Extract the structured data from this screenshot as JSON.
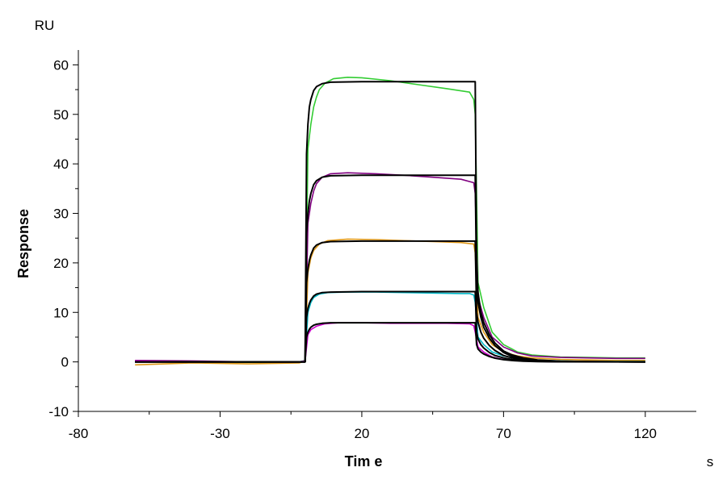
{
  "chart_data": {
    "type": "line",
    "title": "",
    "xlabel": "Tim e",
    "ylabel": "Response",
    "x_unit": "s",
    "y_unit": "RU",
    "xlim": [
      -80,
      138
    ],
    "ylim": [
      -10,
      63
    ],
    "x_ticks": [
      -80,
      -30,
      20,
      70,
      120
    ],
    "x_tick_labels": [
      "-80",
      "-30",
      "20",
      "70",
      "120"
    ],
    "y_ticks": [
      -10,
      0,
      10,
      20,
      30,
      40,
      50,
      60
    ],
    "y_tick_labels": [
      "-10",
      "0",
      "10",
      "20",
      "30",
      "40",
      "50",
      "60"
    ],
    "grid": false,
    "legend": "none",
    "association_start": 0,
    "dissociation_start": 60,
    "series": [
      {
        "color": "#33cc33",
        "points": [
          [
            -60,
            0
          ],
          [
            -40,
            0.1
          ],
          [
            -20,
            -0.1
          ],
          [
            -2,
            0
          ],
          [
            0,
            0.3
          ],
          [
            1,
            43
          ],
          [
            2,
            48
          ],
          [
            3,
            51.5
          ],
          [
            4,
            53.5
          ],
          [
            5,
            55
          ],
          [
            7,
            56.3
          ],
          [
            10,
            57.2
          ],
          [
            15,
            57.5
          ],
          [
            20,
            57.4
          ],
          [
            30,
            56.8
          ],
          [
            40,
            56
          ],
          [
            50,
            55.2
          ],
          [
            58,
            54.5
          ],
          [
            59.5,
            53
          ],
          [
            60,
            50
          ],
          [
            61,
            16
          ],
          [
            63,
            11
          ],
          [
            66,
            6
          ],
          [
            70,
            3.5
          ],
          [
            75,
            2
          ],
          [
            80,
            1.4
          ],
          [
            90,
            1
          ],
          [
            100,
            0.9
          ],
          [
            110,
            0.8
          ],
          [
            120,
            0.8
          ]
        ]
      },
      {
        "color": "#800080",
        "points": [
          [
            -60,
            0.3
          ],
          [
            -40,
            0.2
          ],
          [
            -20,
            0
          ],
          [
            -2,
            0
          ],
          [
            0,
            0.2
          ],
          [
            1,
            28
          ],
          [
            2,
            32
          ],
          [
            3,
            34.5
          ],
          [
            4,
            36
          ],
          [
            6,
            37.3
          ],
          [
            9,
            38
          ],
          [
            15,
            38.2
          ],
          [
            25,
            38
          ],
          [
            35,
            37.7
          ],
          [
            45,
            37.3
          ],
          [
            55,
            36.9
          ],
          [
            59.5,
            36.2
          ],
          [
            60,
            34
          ],
          [
            61,
            13
          ],
          [
            63,
            9
          ],
          [
            66,
            5
          ],
          [
            70,
            3
          ],
          [
            75,
            1.8
          ],
          [
            80,
            1.2
          ],
          [
            90,
            0.9
          ],
          [
            100,
            0.8
          ],
          [
            110,
            0.7
          ],
          [
            120,
            0.7
          ]
        ]
      },
      {
        "color": "#e09818",
        "points": [
          [
            -60,
            -0.6
          ],
          [
            -40,
            -0.2
          ],
          [
            -20,
            -0.4
          ],
          [
            -2,
            -0.2
          ],
          [
            0,
            0.2
          ],
          [
            1,
            18
          ],
          [
            2,
            21
          ],
          [
            3,
            22.5
          ],
          [
            5,
            23.8
          ],
          [
            8,
            24.5
          ],
          [
            15,
            24.8
          ],
          [
            25,
            24.7
          ],
          [
            35,
            24.5
          ],
          [
            45,
            24.3
          ],
          [
            55,
            24.1
          ],
          [
            59.5,
            23.8
          ],
          [
            60,
            22
          ],
          [
            61,
            9
          ],
          [
            63,
            6
          ],
          [
            66,
            3.5
          ],
          [
            70,
            2
          ],
          [
            75,
            1.2
          ],
          [
            80,
            0.8
          ],
          [
            90,
            0.5
          ],
          [
            100,
            0.4
          ],
          [
            110,
            0.3
          ],
          [
            120,
            0.3
          ]
        ]
      },
      {
        "color": "#00b8c8",
        "points": [
          [
            -60,
            0
          ],
          [
            -40,
            0
          ],
          [
            -20,
            0
          ],
          [
            -2,
            0
          ],
          [
            0,
            0.2
          ],
          [
            1,
            10
          ],
          [
            2,
            12
          ],
          [
            3,
            13
          ],
          [
            5,
            13.7
          ],
          [
            8,
            14
          ],
          [
            15,
            14.1
          ],
          [
            25,
            14.1
          ],
          [
            35,
            14
          ],
          [
            45,
            13.9
          ],
          [
            55,
            13.8
          ],
          [
            58,
            13.8
          ],
          [
            59.5,
            13.5
          ],
          [
            60,
            12
          ],
          [
            61,
            5
          ],
          [
            63,
            3.5
          ],
          [
            66,
            2
          ],
          [
            70,
            1.2
          ],
          [
            75,
            0.7
          ],
          [
            80,
            0.4
          ],
          [
            90,
            0.2
          ],
          [
            100,
            0.1
          ],
          [
            110,
            0.1
          ],
          [
            120,
            0.1
          ]
        ]
      },
      {
        "color": "#cc00cc",
        "points": [
          [
            -60,
            0.2
          ],
          [
            -40,
            0
          ],
          [
            -20,
            0
          ],
          [
            -2,
            0
          ],
          [
            0,
            0.2
          ],
          [
            1,
            5.5
          ],
          [
            2,
            6.5
          ],
          [
            4,
            7.2
          ],
          [
            7,
            7.7
          ],
          [
            12,
            7.9
          ],
          [
            20,
            7.9
          ],
          [
            30,
            7.8
          ],
          [
            40,
            7.8
          ],
          [
            50,
            7.8
          ],
          [
            58,
            7.7
          ],
          [
            59.5,
            7.3
          ],
          [
            60,
            6
          ],
          [
            61,
            3
          ],
          [
            63,
            2
          ],
          [
            66,
            1
          ],
          [
            70,
            0.5
          ],
          [
            75,
            0.3
          ],
          [
            80,
            0.1
          ],
          [
            90,
            0
          ],
          [
            100,
            0
          ],
          [
            110,
            0
          ],
          [
            120,
            0
          ]
        ]
      },
      {
        "color": "#000000",
        "points": [
          [
            -60,
            0
          ],
          [
            0,
            0
          ],
          [
            0.5,
            42
          ],
          [
            1,
            48
          ],
          [
            1.5,
            51.5
          ],
          [
            2,
            53
          ],
          [
            3,
            54.8
          ],
          [
            4,
            55.6
          ],
          [
            6,
            56.2
          ],
          [
            9,
            56.5
          ],
          [
            20,
            56.6
          ],
          [
            40,
            56.6
          ],
          [
            60,
            56.6
          ],
          [
            60.5,
            20
          ],
          [
            61,
            14
          ],
          [
            62,
            10
          ],
          [
            63,
            8
          ],
          [
            65,
            5.5
          ],
          [
            67,
            3.8
          ],
          [
            70,
            2.2
          ],
          [
            73,
            1.4
          ],
          [
            77,
            0.8
          ],
          [
            82,
            0.4
          ],
          [
            90,
            0.15
          ],
          [
            100,
            0.05
          ],
          [
            120,
            0
          ]
        ]
      },
      {
        "color": "#000000",
        "points": [
          [
            -60,
            0
          ],
          [
            0,
            0
          ],
          [
            0.5,
            26
          ],
          [
            1,
            30
          ],
          [
            1.5,
            32.5
          ],
          [
            2,
            34
          ],
          [
            3,
            35.8
          ],
          [
            4,
            36.6
          ],
          [
            6,
            37.3
          ],
          [
            9,
            37.6
          ],
          [
            20,
            37.7
          ],
          [
            40,
            37.7
          ],
          [
            60,
            37.7
          ],
          [
            60.5,
            15
          ],
          [
            61,
            12
          ],
          [
            62,
            9
          ],
          [
            63,
            7
          ],
          [
            65,
            4.8
          ],
          [
            67,
            3.3
          ],
          [
            70,
            1.9
          ],
          [
            73,
            1.1
          ],
          [
            77,
            0.6
          ],
          [
            82,
            0.3
          ],
          [
            90,
            0.1
          ],
          [
            100,
            0.03
          ],
          [
            120,
            0
          ]
        ]
      },
      {
        "color": "#000000",
        "points": [
          [
            -60,
            0
          ],
          [
            0,
            0
          ],
          [
            0.5,
            16
          ],
          [
            1,
            18.8
          ],
          [
            1.5,
            20.5
          ],
          [
            2,
            21.6
          ],
          [
            3,
            23
          ],
          [
            4,
            23.6
          ],
          [
            6,
            24.1
          ],
          [
            9,
            24.3
          ],
          [
            20,
            24.4
          ],
          [
            40,
            24.4
          ],
          [
            60,
            24.4
          ],
          [
            60.5,
            10
          ],
          [
            61,
            8
          ],
          [
            62,
            6
          ],
          [
            63,
            4.8
          ],
          [
            65,
            3.3
          ],
          [
            67,
            2.3
          ],
          [
            70,
            1.3
          ],
          [
            73,
            0.8
          ],
          [
            77,
            0.4
          ],
          [
            82,
            0.2
          ],
          [
            90,
            0.05
          ],
          [
            120,
            0
          ]
        ]
      },
      {
        "color": "#000000",
        "points": [
          [
            -60,
            0
          ],
          [
            0,
            0
          ],
          [
            0.5,
            9
          ],
          [
            1,
            10.8
          ],
          [
            1.5,
            11.8
          ],
          [
            2,
            12.5
          ],
          [
            3,
            13.3
          ],
          [
            4,
            13.7
          ],
          [
            6,
            14
          ],
          [
            9,
            14.1
          ],
          [
            20,
            14.2
          ],
          [
            40,
            14.2
          ],
          [
            60,
            14.2
          ],
          [
            60.5,
            6
          ],
          [
            61,
            4.6
          ],
          [
            62,
            3.5
          ],
          [
            63,
            2.8
          ],
          [
            65,
            1.9
          ],
          [
            67,
            1.3
          ],
          [
            70,
            0.8
          ],
          [
            73,
            0.5
          ],
          [
            77,
            0.25
          ],
          [
            82,
            0.1
          ],
          [
            90,
            0.03
          ],
          [
            120,
            0
          ]
        ]
      },
      {
        "color": "#000000",
        "points": [
          [
            -60,
            0
          ],
          [
            0,
            0
          ],
          [
            0.5,
            5
          ],
          [
            1,
            6
          ],
          [
            1.5,
            6.6
          ],
          [
            2,
            7
          ],
          [
            3,
            7.4
          ],
          [
            4,
            7.6
          ],
          [
            6,
            7.8
          ],
          [
            9,
            7.9
          ],
          [
            20,
            7.9
          ],
          [
            40,
            7.9
          ],
          [
            60,
            7.9
          ],
          [
            60.5,
            3.5
          ],
          [
            61,
            2.6
          ],
          [
            62,
            2
          ],
          [
            63,
            1.6
          ],
          [
            65,
            1.1
          ],
          [
            67,
            0.75
          ],
          [
            70,
            0.45
          ],
          [
            73,
            0.28
          ],
          [
            77,
            0.14
          ],
          [
            82,
            0.06
          ],
          [
            90,
            0.02
          ],
          [
            120,
            0
          ]
        ]
      }
    ]
  }
}
